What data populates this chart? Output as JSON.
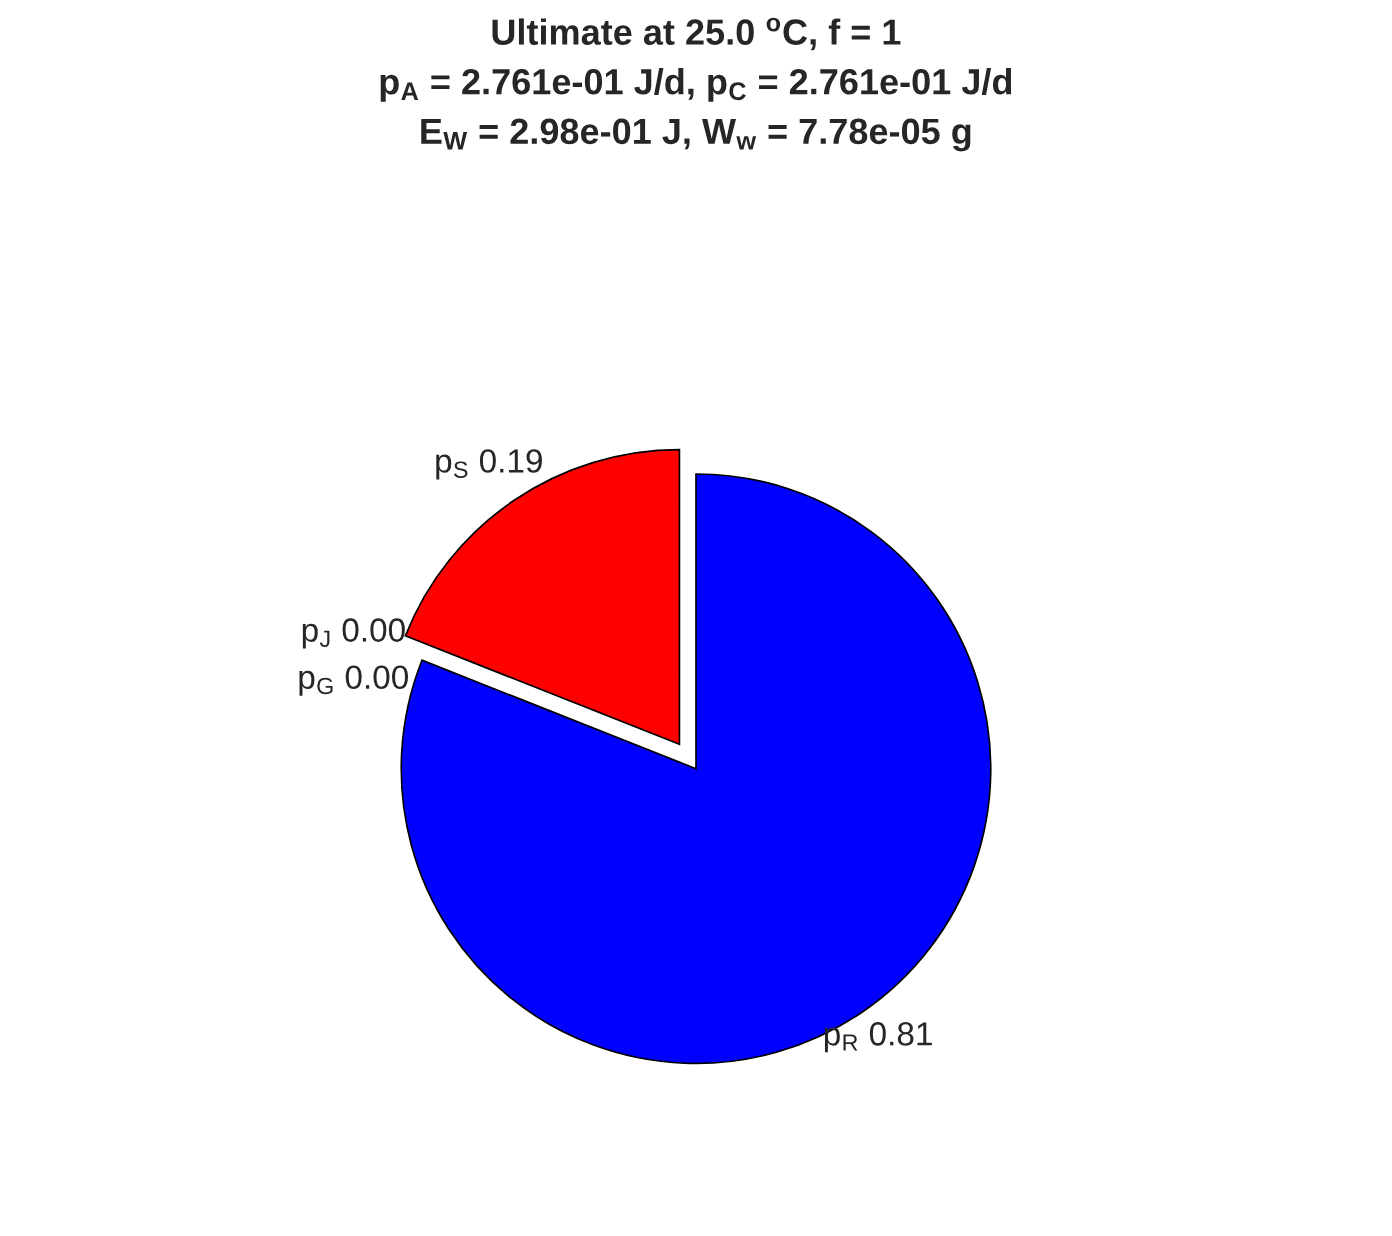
{
  "chart_data": {
    "type": "pie",
    "title": "Ultimate at 25.0 $^{o}$C, f = 1\np$_{A}$ = 2.761e-01 J/d, p$_{C}$ = 2.761e-01 J/d\nE$_{W}$ = 2.98e-01 J, W$_{w}$ = 7.78e-05 g",
    "categories": [
      "p$_{S}$",
      "p$_{J}$",
      "p$_{G}$",
      "p$_{R}$"
    ],
    "values": [
      0.19,
      0.0,
      0.0,
      0.81
    ],
    "colors": [
      "#ff0000",
      "#ff00ff",
      "#00ff00",
      "#0000ff"
    ],
    "value_labels": [
      "0.19",
      "0.00",
      "0.00",
      "0.81"
    ]
  }
}
